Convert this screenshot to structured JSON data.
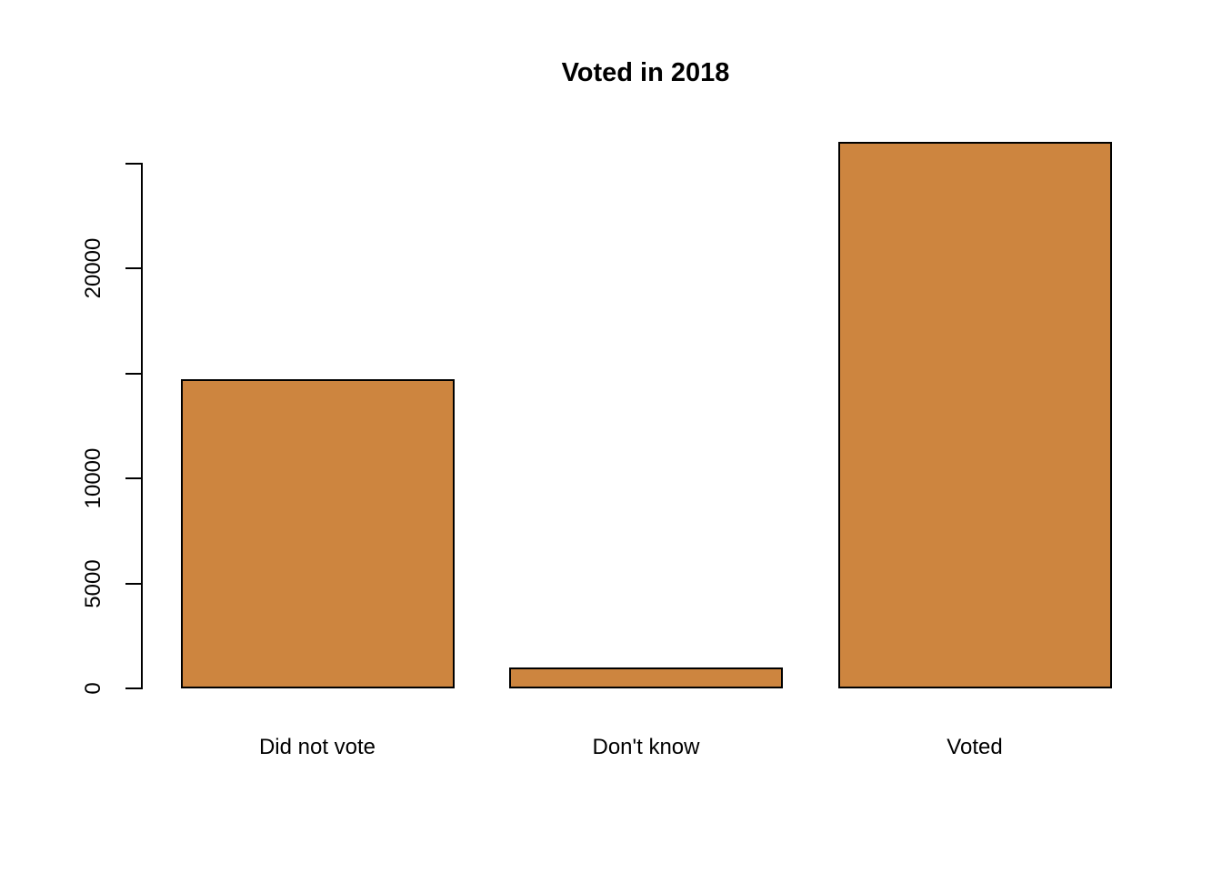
{
  "chart_data": {
    "type": "bar",
    "title": "Voted in 2018",
    "categories": [
      "Did not vote",
      "Don't know",
      "Voted"
    ],
    "values": [
      14700,
      1000,
      26000
    ],
    "xlabel": "",
    "ylabel": "",
    "ylim": [
      0,
      26000
    ],
    "y_axis": {
      "ticks": [
        0,
        5000,
        10000,
        15000,
        20000,
        25000
      ],
      "tick_labels": [
        "0",
        "5000",
        "10000",
        "",
        "20000",
        ""
      ],
      "labels_rotated": true
    },
    "grid": false,
    "legend": false,
    "colors": {
      "bar_fill": "#CD853F",
      "bar_border": "#000000",
      "axis": "#000000",
      "text": "#000000",
      "background": "#FFFFFF"
    }
  }
}
